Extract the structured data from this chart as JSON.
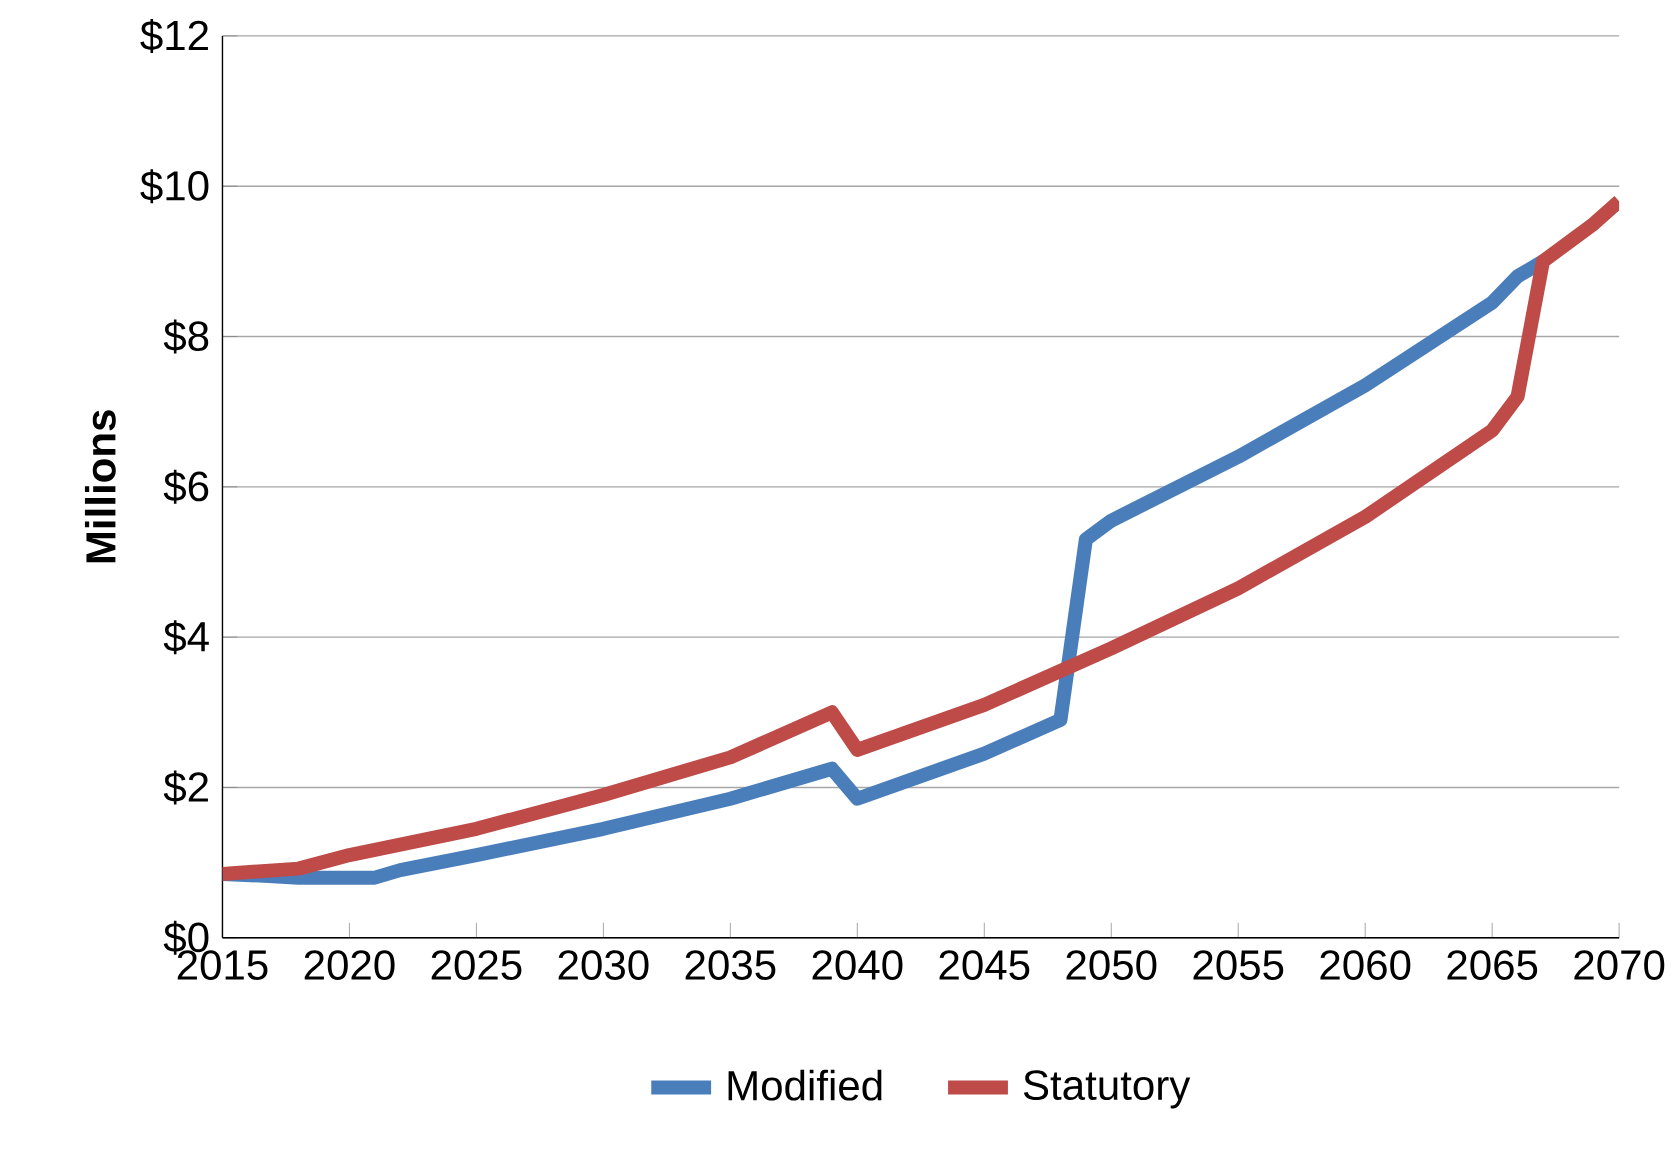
{
  "chart_data": {
    "type": "line",
    "ylabel": "Millions",
    "xlim": [
      2015,
      2070
    ],
    "xticks": [
      2015,
      2020,
      2025,
      2030,
      2035,
      2040,
      2045,
      2050,
      2055,
      2060,
      2065,
      2070
    ],
    "ylim": [
      0,
      12
    ],
    "yticks": [
      {
        "value": 0,
        "label": "$0"
      },
      {
        "value": 2,
        "label": "$2"
      },
      {
        "value": 4,
        "label": "$4"
      },
      {
        "value": 6,
        "label": "$6"
      },
      {
        "value": 8,
        "label": "$8"
      },
      {
        "value": 10,
        "label": "$10"
      },
      {
        "value": 12,
        "label": "$12"
      }
    ],
    "grid": "y",
    "legend": "bottom",
    "marker": "none",
    "line_style": "solid",
    "series": [
      {
        "name": "Modified",
        "color": "#4a7ebb",
        "x": [
          2015,
          2017,
          2018,
          2021,
          2022,
          2025,
          2030,
          2035,
          2039,
          2040,
          2045,
          2048,
          2049,
          2050,
          2055,
          2060,
          2065,
          2066,
          2067
        ],
        "values": [
          0.85,
          0.82,
          0.8,
          0.8,
          0.9,
          1.1,
          1.45,
          1.85,
          2.25,
          1.85,
          2.45,
          2.9,
          5.3,
          5.55,
          6.4,
          7.35,
          8.45,
          8.8,
          9.0
        ]
      },
      {
        "name": "Statutory",
        "color": "#be4b48",
        "x": [
          2015,
          2018,
          2020,
          2025,
          2030,
          2035,
          2039,
          2040,
          2045,
          2050,
          2055,
          2060,
          2065,
          2066,
          2067,
          2068,
          2069,
          2070
        ],
        "values": [
          0.85,
          0.92,
          1.1,
          1.45,
          1.9,
          2.4,
          3.0,
          2.5,
          3.1,
          3.85,
          4.65,
          5.6,
          6.75,
          7.2,
          9.0,
          9.25,
          9.5,
          9.8
        ]
      }
    ]
  }
}
